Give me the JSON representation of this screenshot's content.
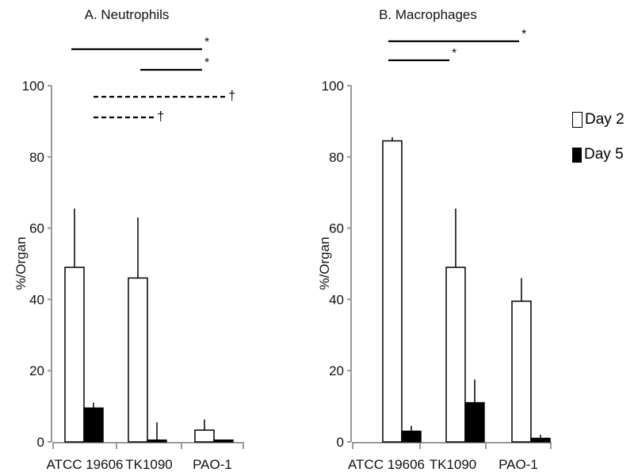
{
  "chart_data": [
    {
      "type": "bar",
      "title": "A. Neutrophils",
      "ylabel": "%/Organ",
      "ylim": [
        0,
        100
      ],
      "yticks": [
        0,
        20,
        40,
        60,
        80,
        100
      ],
      "categories": [
        "ATCC 19606",
        "TK1090",
        "PAO-1"
      ],
      "series": [
        {
          "name": "Day 2",
          "values": [
            49,
            46,
            3.3
          ],
          "errors": [
            16.5,
            17,
            3
          ]
        },
        {
          "name": "Day 5",
          "values": [
            9.5,
            0.5,
            0.5
          ],
          "errors": [
            1.5,
            5,
            0
          ]
        }
      ],
      "annotations": [
        {
          "from": "ATCC 19606 Day 2",
          "to": "TK1090 Day 5",
          "symbol": "*",
          "style": "solid"
        },
        {
          "from": "TK1090 Day 2",
          "to": "TK1090 Day 5",
          "symbol": "*",
          "style": "solid"
        },
        {
          "from": "ATCC 19606 Day 5",
          "to": "PAO-1 Day 5",
          "symbol": "†",
          "style": "dashed"
        },
        {
          "from": "ATCC 19606 Day 5",
          "to": "TK1090 Day 2",
          "symbol": "†",
          "style": "dashed"
        }
      ]
    },
    {
      "type": "bar",
      "title": "B. Macrophages",
      "ylabel": "%/Organ",
      "ylim": [
        0,
        100
      ],
      "yticks": [
        0,
        20,
        40,
        60,
        80,
        100
      ],
      "categories": [
        "ATCC 19606",
        "TK1090",
        "PAO-1"
      ],
      "series": [
        {
          "name": "Day 2",
          "values": [
            84.5,
            49,
            39.5
          ],
          "errors": [
            1,
            16.5,
            6.5
          ]
        },
        {
          "name": "Day 5",
          "values": [
            3,
            11,
            1
          ],
          "errors": [
            1.5,
            6.5,
            1
          ]
        }
      ],
      "annotations": [
        {
          "from": "ATCC 19606 Day 2",
          "to": "PAO-1 Day 2",
          "symbol": "*",
          "style": "solid"
        },
        {
          "from": "ATCC 19606 Day 2",
          "to": "TK1090 Day 2",
          "symbol": "*",
          "style": "solid"
        }
      ]
    }
  ],
  "legend": {
    "placement": "right",
    "items": [
      {
        "label": "Day 2",
        "color": "#ffffff"
      },
      {
        "label": "Day 5",
        "color": "#000000"
      }
    ]
  }
}
